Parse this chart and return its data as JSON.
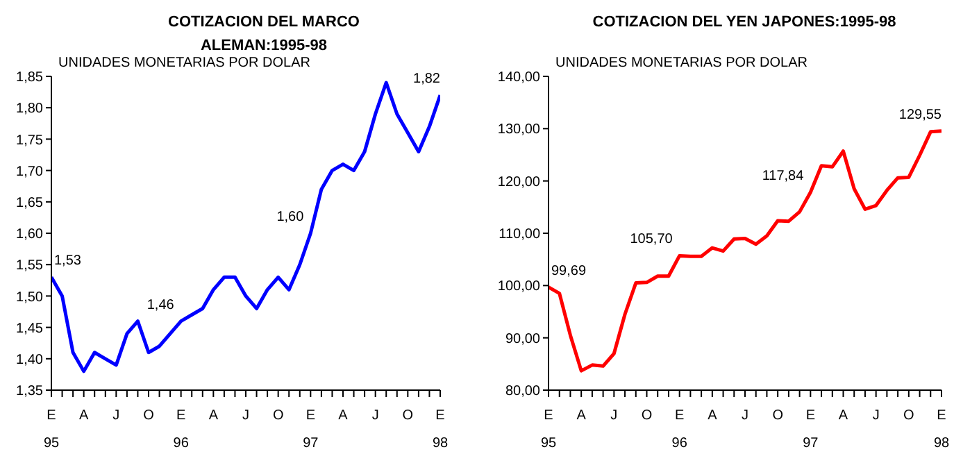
{
  "chart_data": [
    {
      "type": "line",
      "title": "COTIZACION DEL MARCO ALEMAN:1995-98",
      "ylabel": "UNIDADES MONETARIAS POR DOLAR",
      "categories": [
        "E\n95",
        null,
        null,
        "A",
        null,
        null,
        "J",
        null,
        null,
        "O",
        null,
        null,
        "E\n96",
        null,
        null,
        "A",
        null,
        null,
        "J",
        null,
        null,
        "O",
        null,
        null,
        "E\n97",
        null,
        null,
        "A",
        null,
        null,
        "J",
        null,
        null,
        "O",
        null,
        null,
        "E\n98"
      ],
      "series": [
        {
          "color": "#0000ff",
          "values": [
            1.53,
            1.5,
            1.41,
            1.38,
            1.41,
            1.4,
            1.39,
            1.44,
            1.46,
            1.41,
            1.42,
            1.44,
            1.46,
            1.47,
            1.48,
            1.51,
            1.53,
            1.53,
            1.5,
            1.48,
            1.51,
            1.53,
            1.51,
            1.55,
            1.6,
            1.67,
            1.7,
            1.71,
            1.7,
            1.73,
            1.79,
            1.84,
            1.79,
            1.76,
            1.73,
            1.77,
            1.82
          ],
          "value_labels": [
            "1,53",
            null,
            null,
            null,
            null,
            null,
            null,
            null,
            null,
            null,
            null,
            null,
            "1,46",
            null,
            null,
            null,
            null,
            null,
            null,
            null,
            null,
            null,
            null,
            null,
            "1,60",
            null,
            null,
            null,
            null,
            null,
            null,
            null,
            null,
            null,
            null,
            null,
            "1,82"
          ]
        }
      ],
      "ylim": [
        1.35,
        1.85
      ],
      "yticks": [
        {
          "value": 1.35,
          "label": "1,35"
        },
        {
          "value": 1.4,
          "label": "1,40"
        },
        {
          "value": 1.45,
          "label": "1,45"
        },
        {
          "value": 1.5,
          "label": "1,50"
        },
        {
          "value": 1.55,
          "label": "1,55"
        },
        {
          "value": 1.6,
          "label": "1,60"
        },
        {
          "value": 1.65,
          "label": "1,65"
        },
        {
          "value": 1.7,
          "label": "1,70"
        },
        {
          "value": 1.75,
          "label": "1,75"
        },
        {
          "value": 1.8,
          "label": "1,80"
        },
        {
          "value": 1.85,
          "label": "1,85"
        }
      ],
      "marker": "none",
      "grid": false,
      "legend": false
    },
    {
      "type": "line",
      "title": "COTIZACION DEL YEN JAPONES:1995-98",
      "ylabel": "UNIDADES MONETARIAS POR DOLAR",
      "categories": [
        "E\n95",
        null,
        null,
        "A",
        null,
        null,
        "J",
        null,
        null,
        "O",
        null,
        null,
        "E\n96",
        null,
        null,
        "A",
        null,
        null,
        "J",
        null,
        null,
        "O",
        null,
        null,
        "E\n97",
        null,
        null,
        "A",
        null,
        null,
        "J",
        null,
        null,
        "O",
        null,
        null,
        "E\n98"
      ],
      "series": [
        {
          "color": "#ff0000",
          "values": [
            99.69,
            98.5,
            90.5,
            83.7,
            84.8,
            84.6,
            87.0,
            94.5,
            100.5,
            100.6,
            101.8,
            101.8,
            105.7,
            105.6,
            105.6,
            107.2,
            106.6,
            108.9,
            109.0,
            107.9,
            109.5,
            112.4,
            112.3,
            114.1,
            117.84,
            122.9,
            122.7,
            125.7,
            118.5,
            114.6,
            115.3,
            118.2,
            120.6,
            120.7,
            124.9,
            129.4,
            129.55
          ],
          "value_labels": [
            "99,69",
            null,
            null,
            null,
            null,
            null,
            null,
            null,
            null,
            null,
            null,
            null,
            "105,70",
            null,
            null,
            null,
            null,
            null,
            null,
            null,
            null,
            null,
            null,
            null,
            "117,84",
            null,
            null,
            null,
            null,
            null,
            null,
            null,
            null,
            null,
            null,
            null,
            "129,55"
          ]
        }
      ],
      "ylim": [
        80,
        140
      ],
      "yticks": [
        {
          "value": 80,
          "label": "80,00"
        },
        {
          "value": 90,
          "label": "90,00"
        },
        {
          "value": 100,
          "label": "100,00"
        },
        {
          "value": 110,
          "label": "110,00"
        },
        {
          "value": 120,
          "label": "120,00"
        },
        {
          "value": 130,
          "label": "130,00"
        },
        {
          "value": 140,
          "label": "140,00"
        }
      ],
      "marker": "none",
      "grid": false,
      "legend": false
    }
  ]
}
